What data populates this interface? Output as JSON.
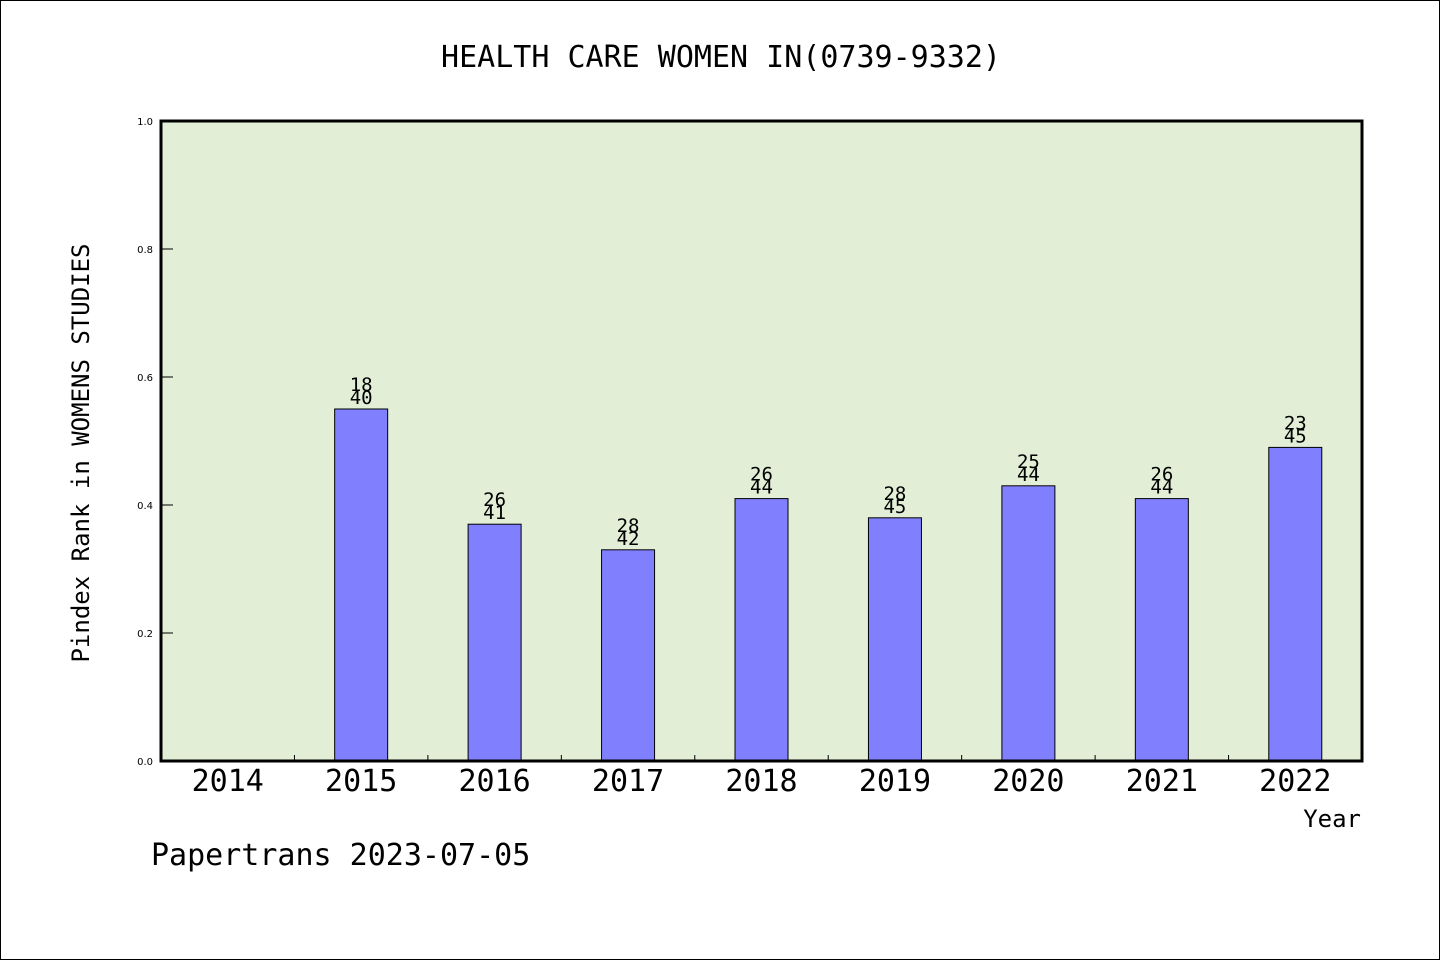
{
  "chart_data": {
    "type": "bar",
    "title": "HEALTH CARE WOMEN IN(0739-9332)",
    "xlabel": "Year",
    "ylabel": "Pindex Rank in WOMENS STUDIES",
    "ylim": [
      0,
      1.0
    ],
    "yticks": [
      "0.0",
      "0.2",
      "0.4",
      "0.6",
      "0.8",
      "1.0"
    ],
    "categories": [
      "2014",
      "2015",
      "2016",
      "2017",
      "2018",
      "2019",
      "2020",
      "2021",
      "2022"
    ],
    "values": [
      null,
      0.55,
      0.37,
      0.33,
      0.41,
      0.38,
      0.43,
      0.41,
      0.49
    ],
    "labels": [
      null,
      [
        "18",
        "40"
      ],
      [
        "26",
        "41"
      ],
      [
        "28",
        "42"
      ],
      [
        "26",
        "44"
      ],
      [
        "28",
        "45"
      ],
      [
        "25",
        "44"
      ],
      [
        "26",
        "44"
      ],
      [
        "23",
        "45"
      ]
    ],
    "grid": false,
    "colors": {
      "plot_background": "#e2efd6",
      "bar_fill": "#8080ff",
      "bar_stroke": "#000000",
      "axis": "#000000"
    }
  },
  "footer": {
    "text": "Papertrans 2023-07-05"
  }
}
